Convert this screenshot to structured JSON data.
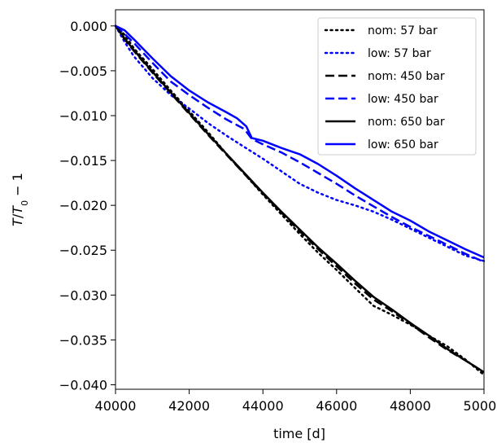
{
  "chart_data": {
    "type": "line",
    "xlabel": "time [d]",
    "ylabel_italic_T": "T",
    "ylabel_sub": "0",
    "ylabel_tail": " − 1",
    "xlim": [
      40000,
      50000
    ],
    "ylim": [
      -0.0405,
      0.0018
    ],
    "x_ticks": [
      40000,
      42000,
      44000,
      46000,
      48000,
      50000
    ],
    "x_tick_labels": [
      "40000",
      "42000",
      "44000",
      "46000",
      "48000",
      "50000"
    ],
    "y_ticks": [
      0.0,
      -0.005,
      -0.01,
      -0.015,
      -0.02,
      -0.025,
      -0.03,
      -0.035,
      -0.04
    ],
    "y_tick_labels": [
      "0.000",
      "−0.005",
      "−0.010",
      "−0.015",
      "−0.020",
      "−0.025",
      "−0.030",
      "−0.035",
      "−0.040"
    ],
    "grid": false,
    "legend_position": "top-right",
    "colors": {
      "nom": "#000000",
      "low": "#0000ff"
    },
    "series": [
      {
        "name": "nom: 57 bar",
        "color": "#000000",
        "style": "dotted",
        "x": [
          40000,
          40250,
          40500,
          41000,
          41500,
          42000,
          42500,
          43000,
          43500,
          44000,
          44500,
          45000,
          45500,
          46000,
          46500,
          47000,
          47500,
          48000,
          48500,
          49000,
          49500,
          50000
        ],
        "y": [
          0.0,
          -0.001,
          -0.0025,
          -0.0048,
          -0.0072,
          -0.0095,
          -0.0118,
          -0.0142,
          -0.0165,
          -0.0188,
          -0.021,
          -0.0232,
          -0.0253,
          -0.0272,
          -0.0292,
          -0.0312,
          -0.0322,
          -0.0333,
          -0.0345,
          -0.0357,
          -0.0372,
          -0.0389
        ]
      },
      {
        "name": "low: 57 bar",
        "color": "#0000ff",
        "style": "dotted",
        "x": [
          40000,
          40250,
          40500,
          41000,
          41500,
          42000,
          42500,
          43000,
          43500,
          44000,
          44500,
          45000,
          45500,
          46000,
          46500,
          47000,
          47500,
          48000,
          48500,
          49000,
          49500,
          50000
        ],
        "y": [
          0.0,
          -0.0018,
          -0.0034,
          -0.0058,
          -0.0077,
          -0.0092,
          -0.0108,
          -0.0122,
          -0.0135,
          -0.0148,
          -0.0162,
          -0.0176,
          -0.0186,
          -0.0194,
          -0.02,
          -0.0207,
          -0.0216,
          -0.0226,
          -0.0236,
          -0.0246,
          -0.0256,
          -0.0262
        ]
      },
      {
        "name": "nom: 450 bar",
        "color": "#000000",
        "style": "dashed",
        "x": [
          40000,
          40250,
          40500,
          41000,
          41500,
          42000,
          42500,
          43000,
          43500,
          44000,
          44500,
          45000,
          45500,
          46000,
          46500,
          47000,
          47500,
          48000,
          48500,
          49000,
          49500,
          50000
        ],
        "y": [
          0.0,
          -0.0015,
          -0.0028,
          -0.0052,
          -0.0075,
          -0.0098,
          -0.0121,
          -0.0143,
          -0.0165,
          -0.0187,
          -0.0208,
          -0.0229,
          -0.0249,
          -0.0268,
          -0.0287,
          -0.0305,
          -0.0318,
          -0.0332,
          -0.0347,
          -0.0361,
          -0.0373,
          -0.0386
        ]
      },
      {
        "name": "low: 450 bar",
        "color": "#0000ff",
        "style": "dashed",
        "x": [
          40000,
          40250,
          40500,
          41000,
          41500,
          42000,
          42500,
          43000,
          43500,
          43700,
          44000,
          44500,
          45000,
          45500,
          46000,
          46500,
          47000,
          47500,
          48000,
          48500,
          49000,
          49500,
          50000
        ],
        "y": [
          0.0,
          -0.0009,
          -0.0019,
          -0.0041,
          -0.0062,
          -0.0077,
          -0.0091,
          -0.0104,
          -0.0115,
          -0.0126,
          -0.0132,
          -0.0141,
          -0.0152,
          -0.0164,
          -0.0176,
          -0.0189,
          -0.0201,
          -0.0213,
          -0.0224,
          -0.0234,
          -0.0244,
          -0.0254,
          -0.0263
        ]
      },
      {
        "name": "nom: 650 bar",
        "color": "#000000",
        "style": "solid",
        "x": [
          40000,
          40250,
          40500,
          41000,
          41500,
          42000,
          42500,
          43000,
          43500,
          44000,
          44500,
          45000,
          45500,
          46000,
          46500,
          47000,
          47500,
          48000,
          48500,
          49000,
          49500,
          50000
        ],
        "y": [
          0.0,
          -0.0014,
          -0.0027,
          -0.0051,
          -0.0074,
          -0.0097,
          -0.012,
          -0.0142,
          -0.0164,
          -0.0186,
          -0.0207,
          -0.0227,
          -0.0247,
          -0.0265,
          -0.0284,
          -0.0302,
          -0.0316,
          -0.0331,
          -0.0345,
          -0.036,
          -0.0373,
          -0.0386
        ]
      },
      {
        "name": "low: 650 bar",
        "color": "#0000ff",
        "style": "solid",
        "x": [
          40000,
          40250,
          40500,
          41000,
          41500,
          42000,
          42500,
          43000,
          43300,
          43550,
          43700,
          44000,
          44500,
          45000,
          45500,
          46000,
          46500,
          47000,
          47500,
          48000,
          48500,
          49000,
          49500,
          50000
        ],
        "y": [
          0.0,
          -0.0005,
          -0.0015,
          -0.0036,
          -0.0056,
          -0.0072,
          -0.0085,
          -0.0096,
          -0.0103,
          -0.0112,
          -0.0125,
          -0.0128,
          -0.0136,
          -0.0143,
          -0.0154,
          -0.0167,
          -0.0181,
          -0.0194,
          -0.0207,
          -0.0217,
          -0.0229,
          -0.0239,
          -0.0249,
          -0.0258
        ]
      }
    ]
  }
}
